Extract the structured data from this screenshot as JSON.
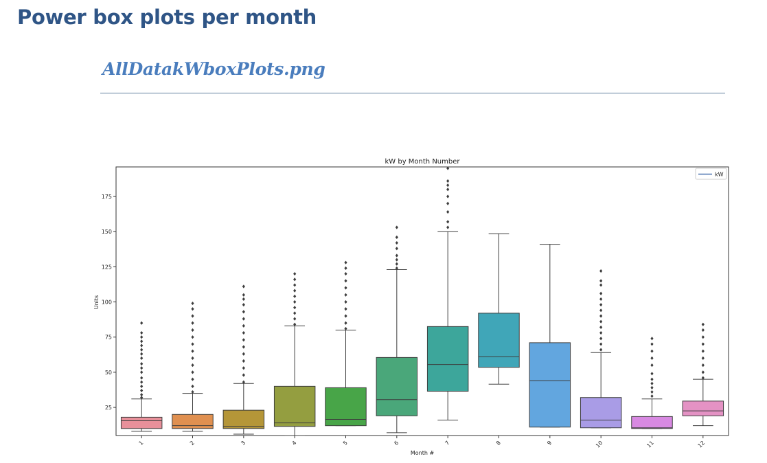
{
  "page": {
    "heading": "Power box plots per month",
    "file_caption": "AllDatakWboxPlots.png"
  },
  "chart_data": {
    "type": "box",
    "title": "kW by Month Number",
    "xlabel": "Month #",
    "ylabel": "Units",
    "categories": [
      "1",
      "2",
      "3",
      "4",
      "5",
      "6",
      "7",
      "8",
      "9",
      "10",
      "11",
      "12"
    ],
    "ylim": [
      5,
      196
    ],
    "yticks": [
      25,
      50,
      75,
      100,
      125,
      150,
      175
    ],
    "legend": {
      "label": "kW",
      "position": "upper-right",
      "color": "#4c72b0"
    },
    "colors": [
      "#e8909a",
      "#e09050",
      "#b59638",
      "#949e40",
      "#48a548",
      "#4aa77a",
      "#3da69b",
      "#40a6b8",
      "#62a6df",
      "#a99ce6",
      "#d889e2",
      "#e492c4"
    ],
    "boxes": [
      {
        "month": "1",
        "min": 8,
        "q1": 10,
        "median": 15.5,
        "q3": 18,
        "max": 31,
        "outliers": [
          32,
          34,
          37,
          40,
          43,
          46,
          50,
          53,
          56,
          60,
          63,
          66,
          69,
          72,
          75,
          78,
          85
        ]
      },
      {
        "month": "2",
        "min": 8,
        "q1": 10,
        "median": 12,
        "q3": 20,
        "max": 35,
        "outliers": [
          36,
          40,
          45,
          50,
          55,
          60,
          65,
          70,
          75,
          80,
          85,
          90,
          95,
          99
        ]
      },
      {
        "month": "3",
        "min": 6,
        "q1": 10,
        "median": 11.5,
        "q3": 23,
        "max": 42,
        "outliers": [
          43,
          48,
          53,
          58,
          63,
          68,
          73,
          78,
          83,
          88,
          93,
          98,
          102,
          105,
          111
        ]
      },
      {
        "month": "4",
        "min": 5,
        "q1": 11.5,
        "median": 14,
        "q3": 40,
        "max": 83,
        "outliers": [
          84,
          88,
          92,
          96,
          100,
          104,
          108,
          112,
          116,
          120
        ]
      },
      {
        "month": "5",
        "min": 12,
        "q1": 12,
        "median": 16.5,
        "q3": 39,
        "max": 80,
        "outliers": [
          81,
          85,
          90,
          95,
          100,
          105,
          110,
          115,
          120,
          124,
          128
        ]
      },
      {
        "month": "6",
        "min": 7,
        "q1": 19,
        "median": 30.5,
        "q3": 60.5,
        "max": 123,
        "outliers": [
          124,
          127,
          130,
          133,
          138,
          142,
          146,
          153
        ]
      },
      {
        "month": "7",
        "min": 16,
        "q1": 36.5,
        "median": 55.5,
        "q3": 82.5,
        "max": 150,
        "outliers": [
          153,
          157,
          164,
          170,
          175,
          180,
          183,
          186,
          195
        ]
      },
      {
        "month": "8",
        "min": 41.5,
        "q1": 53.5,
        "median": 61,
        "q3": 92,
        "max": 148.5,
        "outliers": []
      },
      {
        "month": "9",
        "min": 11,
        "q1": 11,
        "median": 44,
        "q3": 71,
        "max": 141,
        "outliers": []
      },
      {
        "month": "10",
        "min": 10.5,
        "q1": 10.5,
        "median": 16,
        "q3": 32,
        "max": 64,
        "outliers": [
          66,
          70,
          74,
          78,
          82,
          86,
          90,
          94,
          98,
          102,
          106,
          112,
          115,
          122
        ]
      },
      {
        "month": "11",
        "min": 10,
        "q1": 10,
        "median": 10.5,
        "q3": 18.5,
        "max": 31,
        "outliers": [
          33,
          36,
          39,
          42,
          45,
          49,
          55,
          60,
          65,
          70,
          74
        ]
      },
      {
        "month": "12",
        "min": 12,
        "q1": 19,
        "median": 22.5,
        "q3": 29.5,
        "max": 45,
        "outliers": [
          46,
          50,
          55,
          60,
          65,
          70,
          75,
          80,
          84
        ]
      }
    ]
  }
}
